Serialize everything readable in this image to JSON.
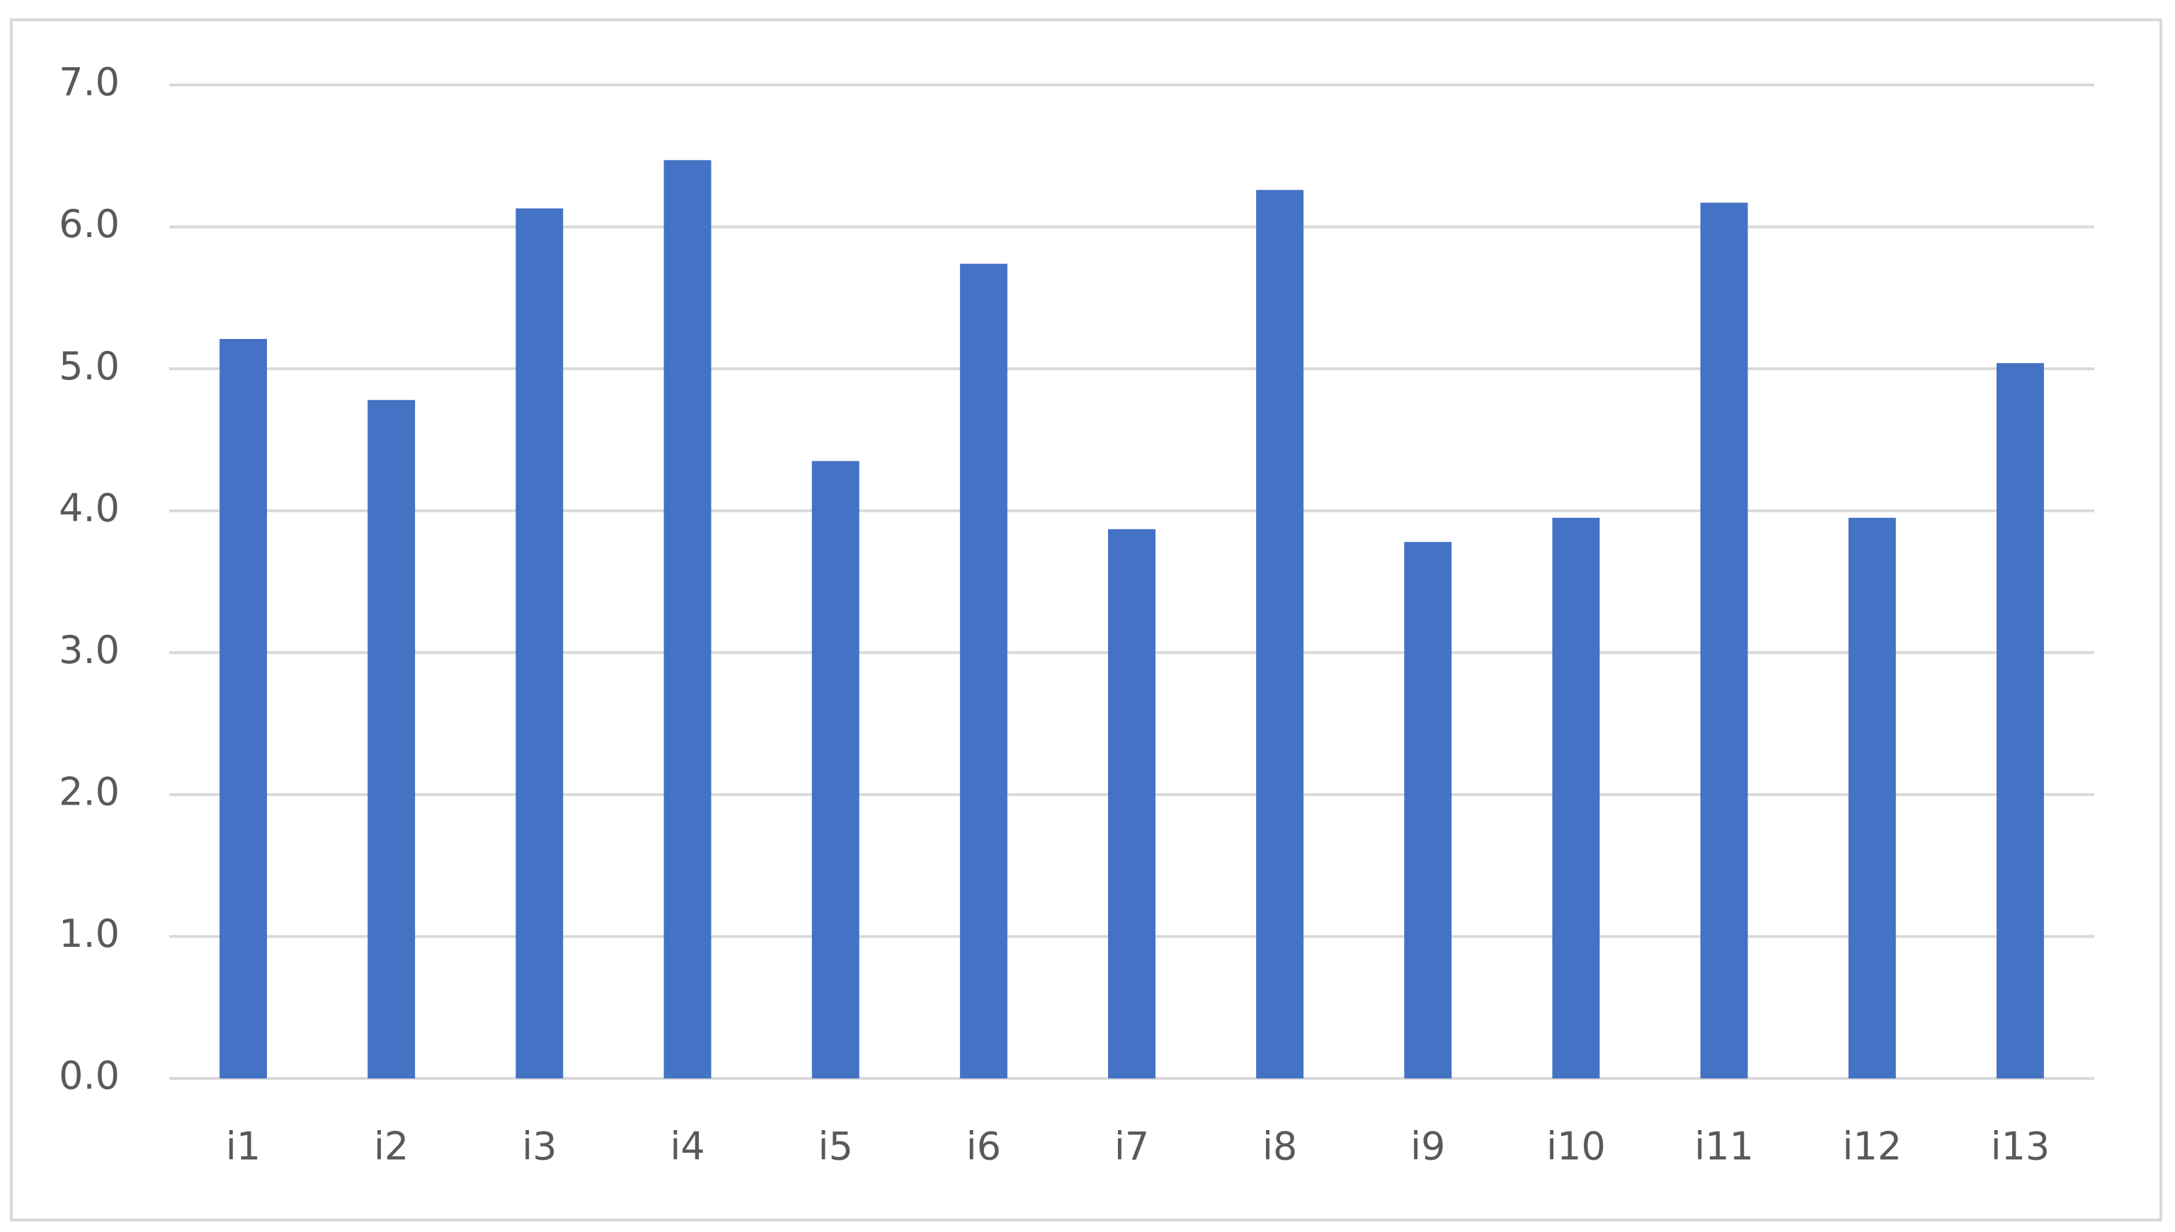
{
  "chart_data": {
    "type": "bar",
    "categories": [
      "i1",
      "i2",
      "i3",
      "i4",
      "i5",
      "i6",
      "i7",
      "i8",
      "i9",
      "i10",
      "i11",
      "i12",
      "i13"
    ],
    "values": [
      5.21,
      4.78,
      6.13,
      6.47,
      4.35,
      5.74,
      3.87,
      6.26,
      3.78,
      3.95,
      6.17,
      3.95,
      5.04
    ],
    "color": "#4472c4",
    "ylim": [
      0,
      7
    ],
    "yticks": [
      {
        "value": 0,
        "label": "0.0"
      },
      {
        "value": 1,
        "label": "1.0"
      },
      {
        "value": 2,
        "label": "2.0"
      },
      {
        "value": 3,
        "label": "3.0"
      },
      {
        "value": 4,
        "label": "4.0"
      },
      {
        "value": 5,
        "label": "5.0"
      },
      {
        "value": 6,
        "label": "6.0"
      },
      {
        "value": 7,
        "label": "7.0"
      }
    ],
    "grid": true
  }
}
